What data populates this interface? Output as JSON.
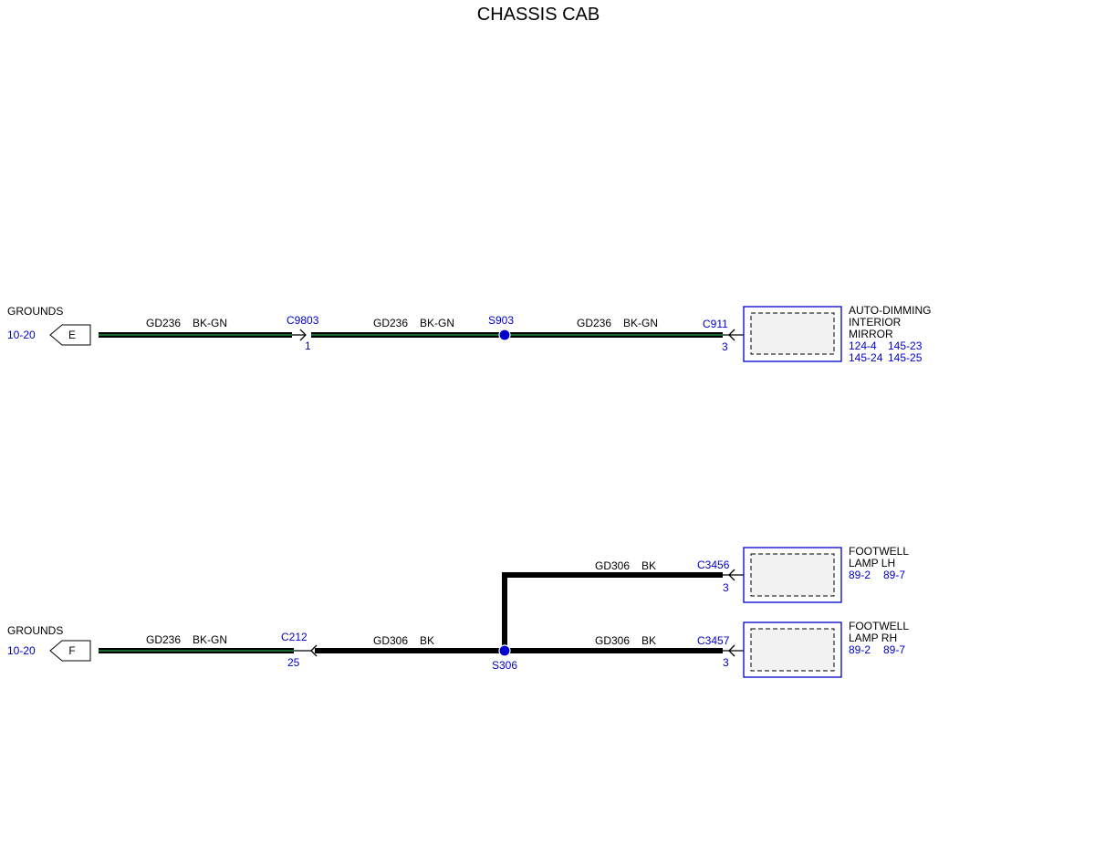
{
  "title": "CHASSIS CAB",
  "colors": {
    "wire_black": "#000000",
    "wire_stripe_green": "#1a8a3a",
    "reference_blue": "#0000cc",
    "component_fill": "#f2f2f2"
  },
  "circuit_e": {
    "ground_label": "GROUNDS",
    "ground_ref": "10-20",
    "ground_letter": "E",
    "segments": [
      {
        "circuit": "GD236",
        "color": "BK-GN"
      },
      {
        "circuit": "GD236",
        "color": "BK-GN"
      },
      {
        "circuit": "GD236",
        "color": "BK-GN"
      }
    ],
    "connector_1": {
      "id": "C9803",
      "pin": "1"
    },
    "splice": {
      "id": "S903"
    },
    "connector_2": {
      "id": "C911",
      "pin": "3"
    },
    "component": {
      "name_lines": [
        "AUTO-DIMMING",
        "INTERIOR",
        "MIRROR"
      ],
      "refs_lines": [
        "124-4",
        "145-23",
        "145-24",
        "145-25"
      ]
    }
  },
  "circuit_f": {
    "ground_label": "GROUNDS",
    "ground_ref": "10-20",
    "ground_letter": "F",
    "segments": [
      {
        "circuit": "GD236",
        "color": "BK-GN"
      },
      {
        "circuit": "GD306",
        "color": "BK"
      },
      {
        "circuit": "GD306",
        "color": "BK"
      },
      {
        "circuit": "GD306",
        "color": "BK"
      }
    ],
    "connector_1": {
      "id": "C212",
      "pin": "25"
    },
    "splice": {
      "id": "S306"
    },
    "connector_lh": {
      "id": "C3456",
      "pin": "3"
    },
    "connector_rh": {
      "id": "C3457",
      "pin": "3"
    },
    "component_lh": {
      "name_lines": [
        "FOOTWELL",
        "LAMP LH"
      ],
      "refs": [
        "89-2",
        "89-7"
      ]
    },
    "component_rh": {
      "name_lines": [
        "FOOTWELL",
        "LAMP RH"
      ],
      "refs": [
        "89-2",
        "89-7"
      ]
    }
  }
}
